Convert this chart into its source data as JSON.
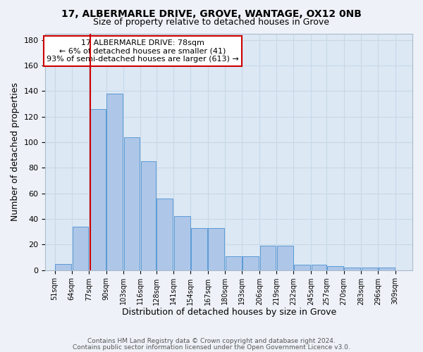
{
  "title_line1": "17, ALBERMARLE DRIVE, GROVE, WANTAGE, OX12 0NB",
  "title_line2": "Size of property relative to detached houses in Grove",
  "xlabel": "Distribution of detached houses by size in Grove",
  "ylabel": "Number of detached properties",
  "bar_left_edges": [
    51,
    64,
    77,
    90,
    103,
    116,
    128,
    141,
    154,
    167,
    180,
    193,
    206,
    219,
    232,
    245,
    257,
    270,
    283,
    296
  ],
  "bar_widths": [
    13,
    13,
    13,
    13,
    13,
    12,
    13,
    13,
    13,
    13,
    13,
    13,
    13,
    13,
    13,
    12,
    13,
    13,
    13,
    13
  ],
  "bar_heights": [
    5,
    34,
    126,
    138,
    104,
    85,
    56,
    42,
    33,
    33,
    11,
    11,
    19,
    19,
    4,
    4,
    3,
    2,
    2,
    2
  ],
  "bar_color": "#aec6e8",
  "bar_edge_color": "#5b9bd5",
  "grid_color": "#c8d8e8",
  "vline_x": 78,
  "vline_color": "#cc0000",
  "annotation_text": "17 ALBERMARLE DRIVE: 78sqm\n← 6% of detached houses are smaller (41)\n93% of semi-detached houses are larger (613) →",
  "annotation_box_color": "#ffffff",
  "annotation_box_edge_color": "#cc0000",
  "ylim": [
    0,
    185
  ],
  "yticks": [
    0,
    20,
    40,
    60,
    80,
    100,
    120,
    140,
    160,
    180
  ],
  "xtick_labels": [
    "51sqm",
    "64sqm",
    "77sqm",
    "90sqm",
    "103sqm",
    "116sqm",
    "128sqm",
    "141sqm",
    "154sqm",
    "167sqm",
    "180sqm",
    "193sqm",
    "206sqm",
    "219sqm",
    "232sqm",
    "245sqm",
    "257sqm",
    "270sqm",
    "283sqm",
    "296sqm",
    "309sqm"
  ],
  "xtick_positions": [
    51,
    64,
    77,
    90,
    103,
    116,
    128,
    141,
    154,
    167,
    180,
    193,
    206,
    219,
    232,
    245,
    257,
    270,
    283,
    296,
    309
  ],
  "footer_line1": "Contains HM Land Registry data © Crown copyright and database right 2024.",
  "footer_line2": "Contains public sector information licensed under the Open Government Licence v3.0.",
  "bg_color": "#eef2f8",
  "plot_bg_color": "#dce8f4"
}
